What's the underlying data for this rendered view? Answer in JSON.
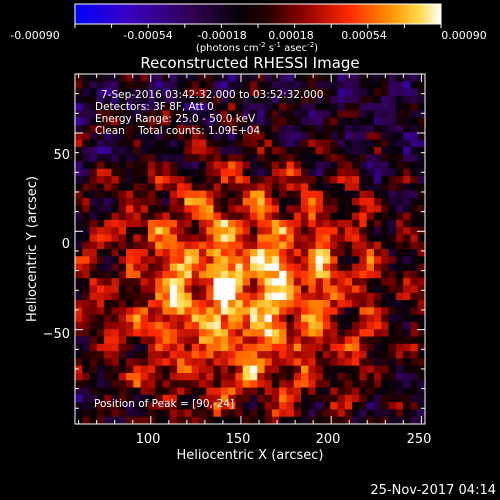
{
  "colorbar": {
    "ticks": [
      "-0.00090",
      "-0.00054",
      "-0.00018",
      "0.00018",
      "0.00054",
      "0.00090"
    ],
    "units_prefix": "(photons cm",
    "units_exp1": "-2",
    "units_mid": " s",
    "units_exp2": "-1",
    "units_mid2": " asec",
    "units_exp3": "-2",
    "units_suffix": ")",
    "colors": [
      "#0000ff",
      "#4400aa",
      "#220033",
      "#000000",
      "#330000",
      "#aa0000",
      "#ff3300",
      "#ff8800",
      "#ffcc00",
      "#ffffff"
    ]
  },
  "chart_data": {
    "type": "heatmap",
    "title": "Reconstructed RHESSI Image",
    "xlabel": "Heliocentric X (arcsec)",
    "ylabel": "Heliocentric Y (arcsec)",
    "xlim": [
      58,
      252
    ],
    "ylim": [
      -98,
      80
    ],
    "xticks": [
      100,
      150,
      200,
      250
    ],
    "xtick_labels": [
      "100",
      "150",
      "200",
      "250"
    ],
    "yticks": [
      -50,
      0,
      50
    ],
    "ytick_labels": [
      "−50",
      "0",
      "50"
    ],
    "color_range": [
      -0.0009,
      0.0009
    ],
    "peak": [
      90,
      -24
    ],
    "annotations": {
      "time": "7-Sep-2016 03:42:32.000 to 03:52:32.000",
      "detectors": "Detectors: 3F 8F, Att 0",
      "energy": "Energy Range: 25.0 - 50.0 keV",
      "clean": "Clean    Total counts: 1.09E+04",
      "peak": "Position of Peak = [90,-24]"
    }
  },
  "footer": {
    "date": "25-Nov-2017 04:14"
  }
}
